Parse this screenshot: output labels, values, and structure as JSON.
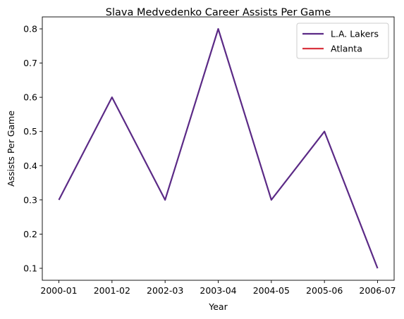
{
  "chart_data": {
    "type": "line",
    "title": "Slava Medvedenko Career Assists Per Game",
    "xlabel": "Year",
    "ylabel": "Assists Per Game",
    "categories": [
      "2000-01",
      "2001-02",
      "2002-03",
      "2003-04",
      "2004-05",
      "2005-06",
      "2006-07"
    ],
    "series": [
      {
        "name": "L.A. Lakers",
        "color": "#5b2a86",
        "x": [
          "2000-01",
          "2001-02",
          "2002-03",
          "2003-04",
          "2004-05",
          "2005-06",
          "2006-07"
        ],
        "values": [
          0.3,
          0.6,
          0.3,
          0.8,
          0.3,
          0.5,
          0.1
        ]
      },
      {
        "name": "Atlanta",
        "color": "#d9343f",
        "x": [
          "2006-07"
        ],
        "values": [
          0.1
        ]
      }
    ],
    "yticks": [
      "0.1",
      "0.2",
      "0.3",
      "0.4",
      "0.5",
      "0.6",
      "0.7",
      "0.8"
    ],
    "ylim": [
      0.065,
      0.835
    ],
    "grid": false,
    "legend": "top-right"
  }
}
